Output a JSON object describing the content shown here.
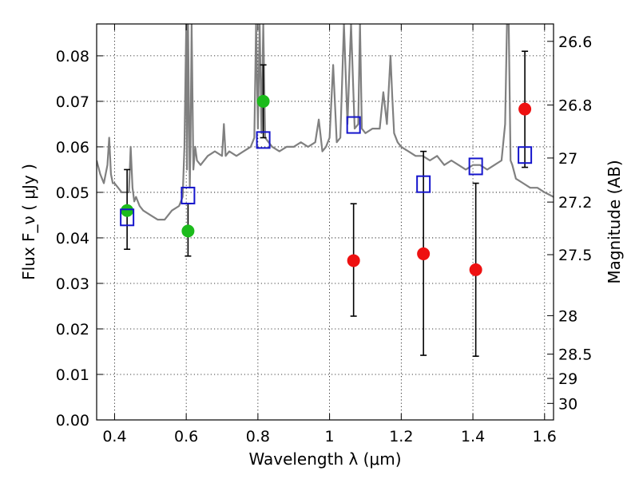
{
  "chart_data": {
    "type": "scatter",
    "xlabel": "Wavelength  λ (μm)",
    "ylabel": "Flux  F_ν  ( μJy )",
    "y2label": "Magnitude (AB)",
    "xlim": [
      0.35,
      1.625
    ],
    "ylim": [
      0.0,
      0.087
    ],
    "grid": true,
    "x_ticks": [
      {
        "v": 0.4,
        "label": "0.4"
      },
      {
        "v": 0.6,
        "label": "0.6"
      },
      {
        "v": 0.8,
        "label": "0.8"
      },
      {
        "v": 1.0,
        "label": "1"
      },
      {
        "v": 1.2,
        "label": "1.2"
      },
      {
        "v": 1.4,
        "label": "1.4"
      },
      {
        "v": 1.6,
        "label": "1.6"
      }
    ],
    "y_ticks": [
      {
        "v": 0.0,
        "label": "0.00"
      },
      {
        "v": 0.01,
        "label": "0.01"
      },
      {
        "v": 0.02,
        "label": "0.02"
      },
      {
        "v": 0.03,
        "label": "0.03"
      },
      {
        "v": 0.04,
        "label": "0.04"
      },
      {
        "v": 0.05,
        "label": "0.05"
      },
      {
        "v": 0.06,
        "label": "0.06"
      },
      {
        "v": 0.07,
        "label": "0.07"
      },
      {
        "v": 0.08,
        "label": "0.08"
      }
    ],
    "y2_ticks": [
      {
        "mag": 26.6,
        "label": "26.6"
      },
      {
        "mag": 26.8,
        "label": "26.8"
      },
      {
        "mag": 27,
        "label": "27"
      },
      {
        "mag": 27.2,
        "label": "27.2"
      },
      {
        "mag": 27.5,
        "label": "27.5"
      },
      {
        "mag": 28,
        "label": "28"
      },
      {
        "mag": 28.5,
        "label": "28.5"
      },
      {
        "mag": 29,
        "label": "29"
      },
      {
        "mag": 30,
        "label": "30"
      }
    ],
    "series": [
      {
        "kind": "line",
        "color": "#808080",
        "x": [
          0.35,
          0.36,
          0.37,
          0.38,
          0.385,
          0.39,
          0.395,
          0.4,
          0.41,
          0.42,
          0.43,
          0.44,
          0.445,
          0.45,
          0.455,
          0.46,
          0.47,
          0.48,
          0.5,
          0.52,
          0.54,
          0.56,
          0.58,
          0.59,
          0.595,
          0.6,
          0.602,
          0.605,
          0.61,
          0.612,
          0.615,
          0.62,
          0.625,
          0.63,
          0.64,
          0.66,
          0.68,
          0.7,
          0.705,
          0.71,
          0.72,
          0.74,
          0.76,
          0.78,
          0.79,
          0.795,
          0.8,
          0.805,
          0.81,
          0.815,
          0.82,
          0.83,
          0.84,
          0.86,
          0.88,
          0.9,
          0.92,
          0.94,
          0.96,
          0.97,
          0.98,
          0.99,
          1.0,
          1.01,
          1.02,
          1.03,
          1.04,
          1.05,
          1.06,
          1.07,
          1.08,
          1.085,
          1.09,
          1.1,
          1.12,
          1.14,
          1.15,
          1.16,
          1.17,
          1.175,
          1.18,
          1.19,
          1.2,
          1.22,
          1.24,
          1.26,
          1.28,
          1.3,
          1.32,
          1.34,
          1.36,
          1.38,
          1.4,
          1.42,
          1.44,
          1.46,
          1.48,
          1.49,
          1.495,
          1.5,
          1.505,
          1.51,
          1.52,
          1.54,
          1.56,
          1.58,
          1.6,
          1.625
        ],
        "y": [
          0.057,
          0.054,
          0.052,
          0.056,
          0.062,
          0.054,
          0.052,
          0.052,
          0.051,
          0.05,
          0.05,
          0.05,
          0.06,
          0.051,
          0.048,
          0.049,
          0.047,
          0.046,
          0.045,
          0.044,
          0.044,
          0.046,
          0.047,
          0.049,
          0.06,
          0.09,
          0.055,
          0.09,
          0.051,
          0.06,
          0.09,
          0.055,
          0.06,
          0.057,
          0.056,
          0.058,
          0.059,
          0.058,
          0.065,
          0.058,
          0.059,
          0.058,
          0.059,
          0.06,
          0.062,
          0.09,
          0.064,
          0.09,
          0.063,
          0.09,
          0.062,
          0.061,
          0.06,
          0.059,
          0.06,
          0.06,
          0.061,
          0.06,
          0.061,
          0.066,
          0.059,
          0.06,
          0.062,
          0.078,
          0.061,
          0.062,
          0.09,
          0.065,
          0.09,
          0.064,
          0.065,
          0.09,
          0.064,
          0.063,
          0.064,
          0.064,
          0.072,
          0.065,
          0.08,
          0.071,
          0.063,
          0.061,
          0.06,
          0.059,
          0.058,
          0.058,
          0.057,
          0.058,
          0.056,
          0.057,
          0.056,
          0.055,
          0.056,
          0.056,
          0.055,
          0.056,
          0.057,
          0.065,
          0.09,
          0.09,
          0.057,
          0.056,
          0.053,
          0.052,
          0.051,
          0.051,
          0.05,
          0.049
        ]
      },
      {
        "kind": "errorbar",
        "color": "#000000",
        "points": [
          {
            "x": 0.435,
            "lo": 0.0375,
            "hi": 0.055
          },
          {
            "x": 0.605,
            "lo": 0.036,
            "hi": 0.0475
          },
          {
            "x": 0.815,
            "lo": 0.062,
            "hi": 0.078
          },
          {
            "x": 1.067,
            "lo": 0.0228,
            "hi": 0.0475
          },
          {
            "x": 1.262,
            "lo": 0.0142,
            "hi": 0.059
          },
          {
            "x": 1.408,
            "lo": 0.014,
            "hi": 0.052
          },
          {
            "x": 1.545,
            "lo": 0.0555,
            "hi": 0.081
          }
        ]
      },
      {
        "kind": "points",
        "marker": "circle",
        "color": "#1cbb1c",
        "x": [
          0.435,
          0.605,
          0.815
        ],
        "y": [
          0.046,
          0.0415,
          0.07
        ]
      },
      {
        "kind": "points",
        "marker": "circle",
        "color": "#ee1111",
        "x": [
          1.067,
          1.262,
          1.408,
          1.545
        ],
        "y": [
          0.035,
          0.0365,
          0.033,
          0.0683
        ]
      },
      {
        "kind": "points",
        "marker": "square",
        "color": "#1515cc",
        "x": [
          0.435,
          0.605,
          0.815,
          1.067,
          1.262,
          1.408,
          1.545
        ],
        "y": [
          0.0445,
          0.0493,
          0.0615,
          0.0648,
          0.0518,
          0.0557,
          0.0582
        ]
      }
    ]
  }
}
